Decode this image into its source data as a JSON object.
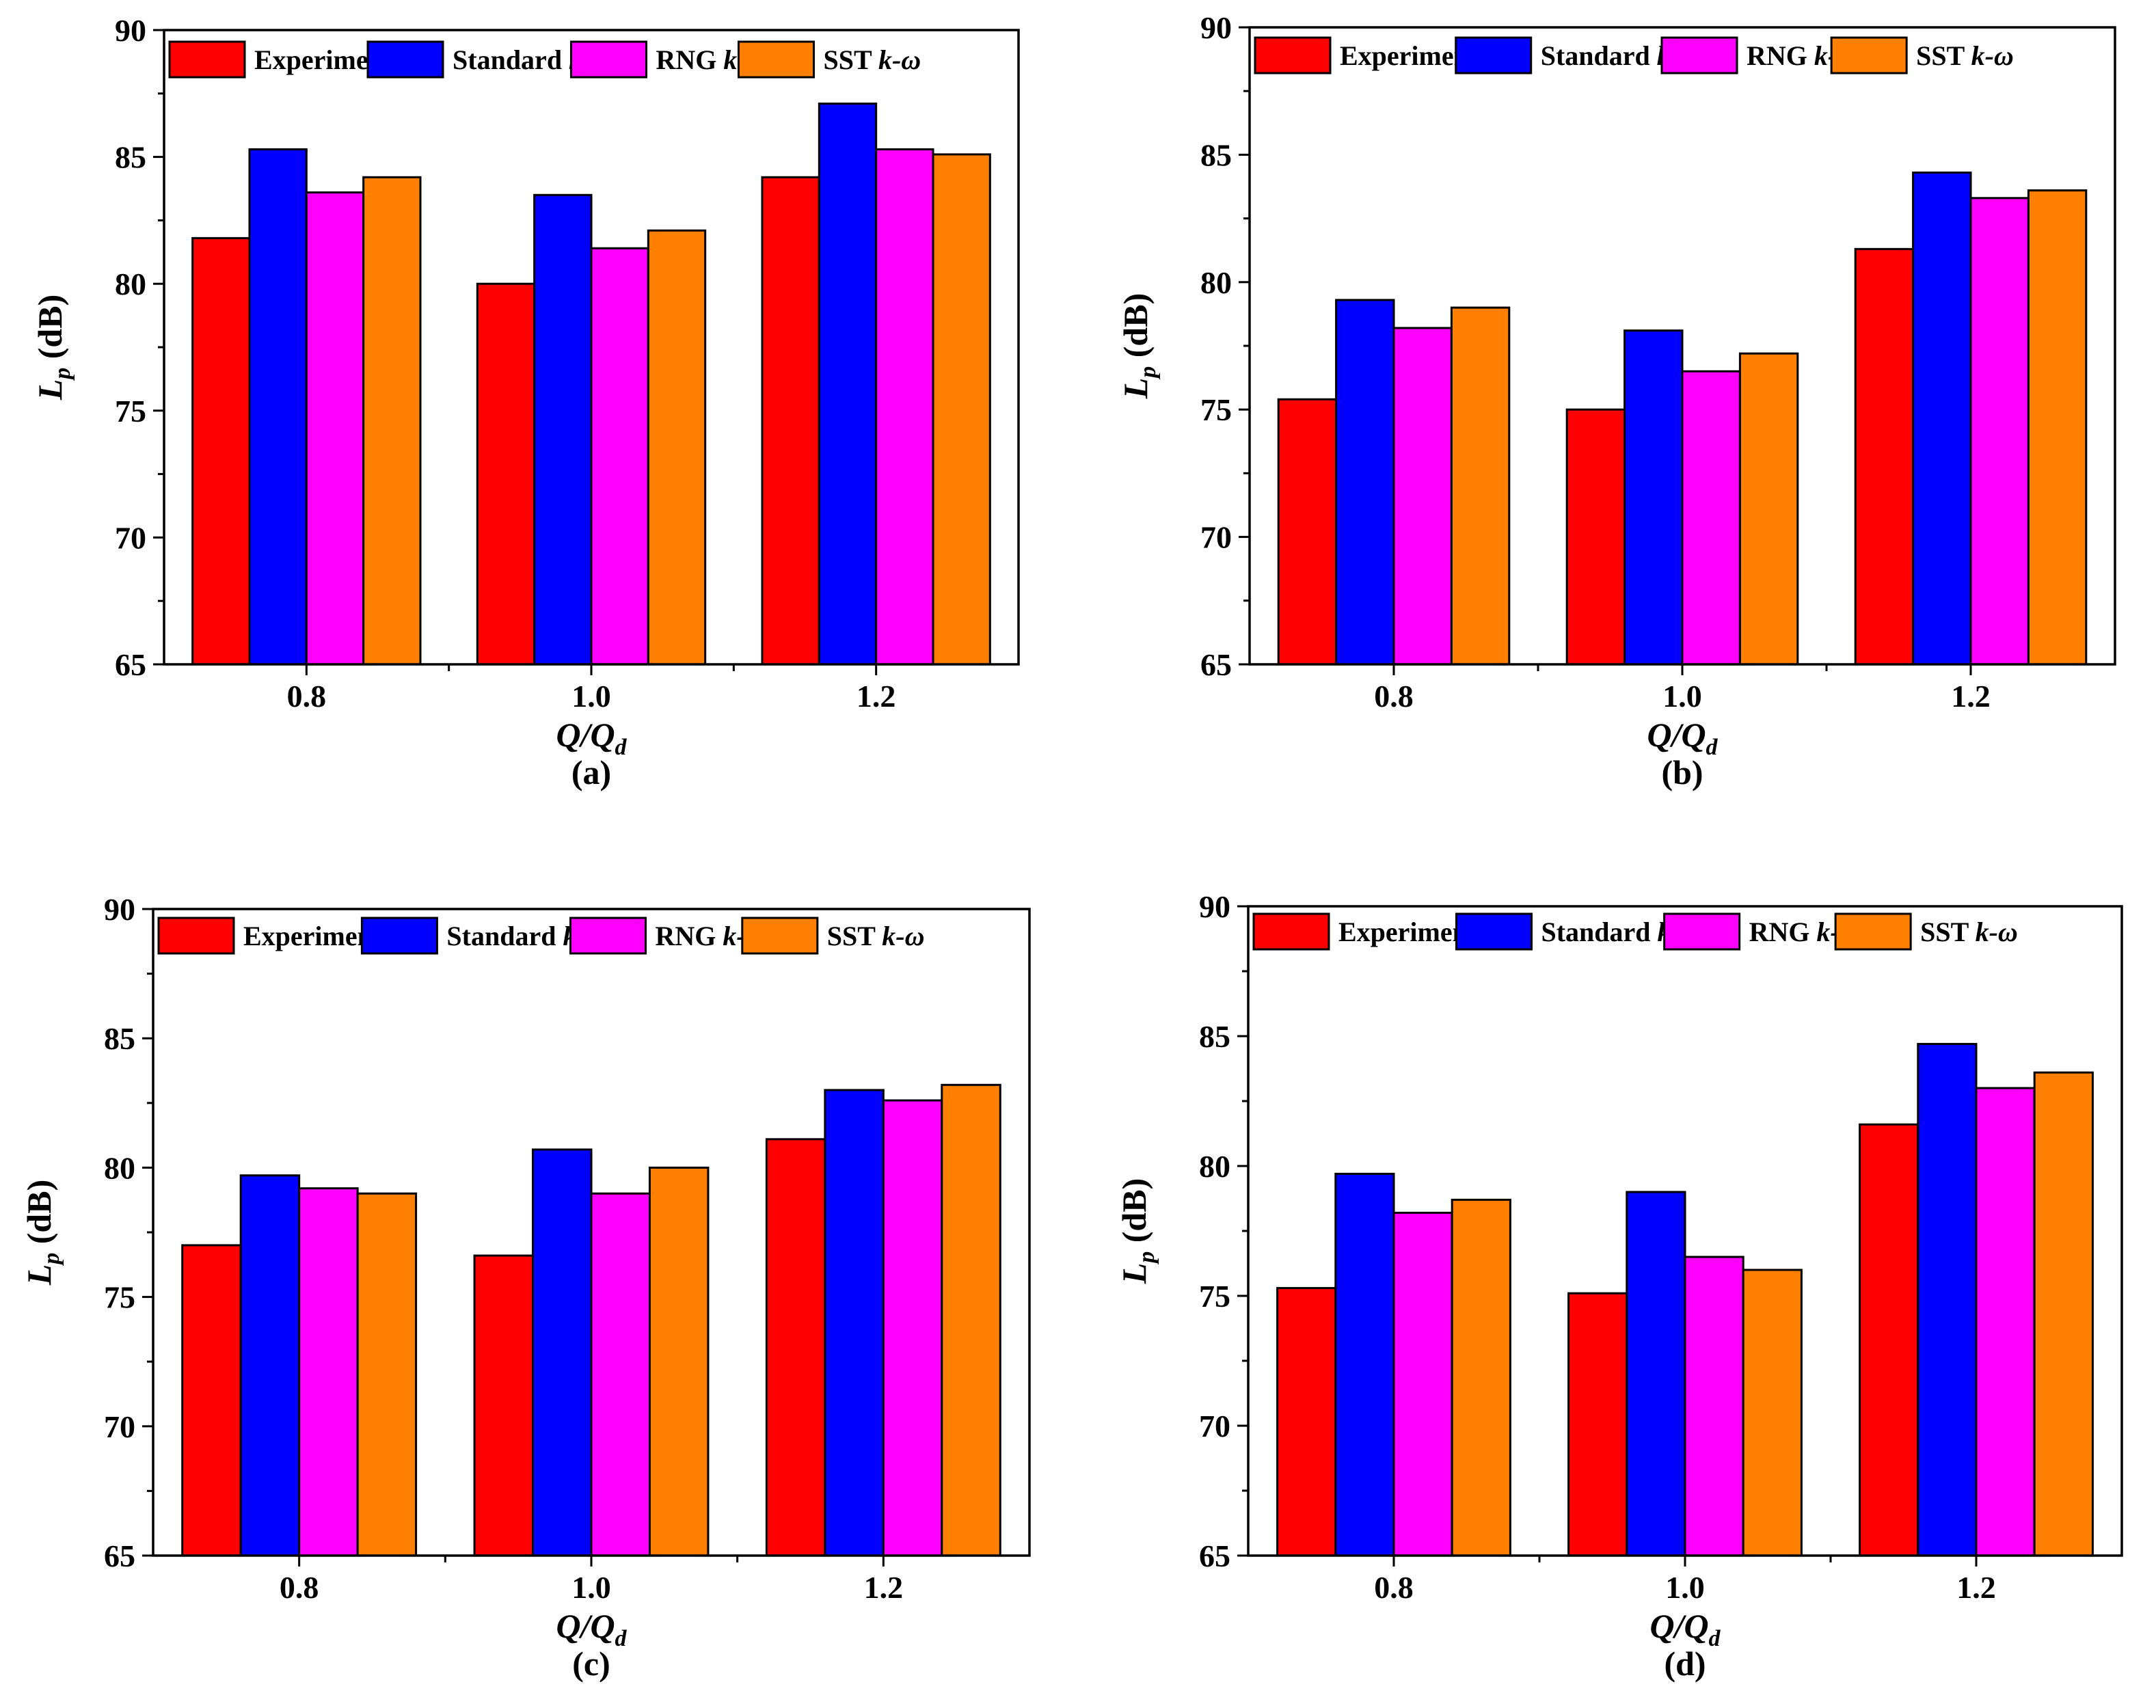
{
  "colors": {
    "Experiment": "#ff0000",
    "Standard": "#0000ff",
    "RNG": "#ff00ff",
    "SST": "#ff8000",
    "axis": "#000000"
  },
  "legend": [
    {
      "key": "Experiment",
      "name": "Experiment",
      "suffix": ""
    },
    {
      "key": "Standard",
      "name": "Standard ",
      "suffix": "k-ε"
    },
    {
      "key": "RNG",
      "name": "RNG ",
      "suffix": "k-ε"
    },
    {
      "key": "SST",
      "name": "SST ",
      "suffix": "k-ω"
    }
  ],
  "axis_titles": {
    "y_main": "L",
    "y_sub": "p",
    "y_unit": " (dB)",
    "x_main": "Q/Q",
    "x_sub": "d"
  },
  "chart_data": [
    {
      "type": "bar",
      "panel": "(a)",
      "categories": [
        "0.8",
        "1.0",
        "1.2"
      ],
      "ylim": [
        65,
        90
      ],
      "yticks": [
        "65",
        "70",
        "75",
        "80",
        "85",
        "90"
      ],
      "xlabel": "Q/Qd",
      "ylabel": "Lp (dB)",
      "series": [
        {
          "name": "Experiment",
          "values": [
            81.8,
            80.0,
            84.2
          ]
        },
        {
          "name": "Standard k-ε",
          "values": [
            85.3,
            83.5,
            87.1
          ]
        },
        {
          "name": "RNG k-ε",
          "values": [
            83.6,
            81.4,
            85.3
          ]
        },
        {
          "name": "SST k-ω",
          "values": [
            84.2,
            82.1,
            85.1
          ]
        }
      ]
    },
    {
      "type": "bar",
      "panel": "(b)",
      "categories": [
        "0.8",
        "1.0",
        "1.2"
      ],
      "ylim": [
        65,
        90
      ],
      "yticks": [
        "65",
        "70",
        "75",
        "80",
        "85",
        "90"
      ],
      "xlabel": "Q/Qd",
      "ylabel": "Lp (dB)",
      "series": [
        {
          "name": "Experiment",
          "values": [
            75.4,
            75.0,
            81.3
          ]
        },
        {
          "name": "Standard k-ε",
          "values": [
            79.3,
            78.1,
            84.3
          ]
        },
        {
          "name": "RNG k-ε",
          "values": [
            78.2,
            76.5,
            83.3
          ]
        },
        {
          "name": "SST k-ω",
          "values": [
            79.0,
            77.2,
            83.6
          ]
        }
      ]
    },
    {
      "type": "bar",
      "panel": "(c)",
      "categories": [
        "0.8",
        "1.0",
        "1.2"
      ],
      "ylim": [
        65,
        90
      ],
      "yticks": [
        "65",
        "70",
        "75",
        "80",
        "85",
        "90"
      ],
      "xlabel": "Q/Qd",
      "ylabel": "Lp (dB)",
      "series": [
        {
          "name": "Experiment",
          "values": [
            77.0,
            76.6,
            81.1
          ]
        },
        {
          "name": "Standard k-ε",
          "values": [
            79.7,
            80.7,
            83.0
          ]
        },
        {
          "name": "RNG k-ε",
          "values": [
            79.2,
            79.0,
            82.6
          ]
        },
        {
          "name": "SST k-ω",
          "values": [
            79.0,
            80.0,
            83.2
          ]
        }
      ]
    },
    {
      "type": "bar",
      "panel": "(d)",
      "categories": [
        "0.8",
        "1.0",
        "1.2"
      ],
      "ylim": [
        65,
        90
      ],
      "yticks": [
        "65",
        "70",
        "75",
        "80",
        "85",
        "90"
      ],
      "xlabel": "Q/Qd",
      "ylabel": "Lp (dB)",
      "series": [
        {
          "name": "Experiment",
          "values": [
            75.3,
            75.1,
            81.6
          ]
        },
        {
          "name": "Standard k-ε",
          "values": [
            79.7,
            79.0,
            84.7
          ]
        },
        {
          "name": "RNG k-ε",
          "values": [
            78.2,
            76.5,
            83.0
          ]
        },
        {
          "name": "SST k-ω",
          "values": [
            78.7,
            76.0,
            83.6
          ]
        }
      ]
    }
  ]
}
